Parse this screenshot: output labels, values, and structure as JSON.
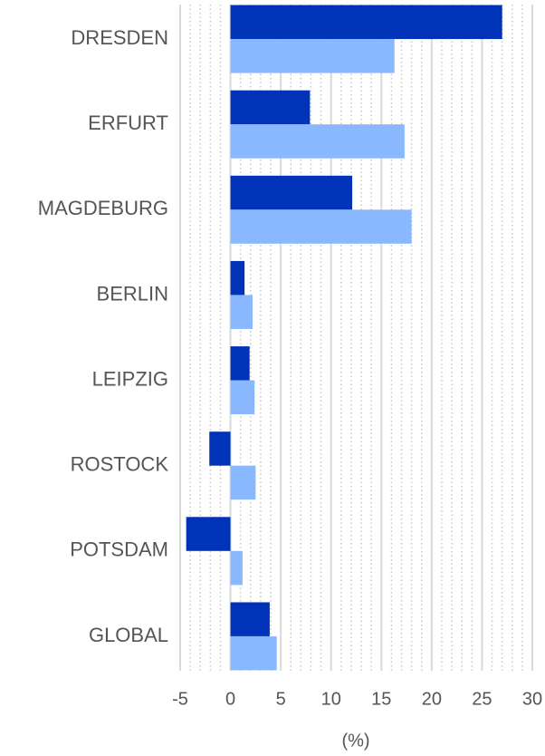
{
  "chart_data": {
    "type": "hbar",
    "categories": [
      "DRESDEN",
      "ERFURT",
      "MAGDEBURG",
      "BERLIN",
      "LEIPZIG",
      "ROSTOCK",
      "POTSDAM",
      "GLOBAL"
    ],
    "series": [
      {
        "color": "#0033b8",
        "values": [
          27.0,
          7.9,
          12.1,
          1.4,
          1.9,
          -2.1,
          -4.4,
          3.9
        ]
      },
      {
        "color": "#8ab8ff",
        "values": [
          16.3,
          17.3,
          18.0,
          2.2,
          2.4,
          2.5,
          1.2,
          4.6
        ]
      }
    ],
    "xlabel": "(%)",
    "xlim": [
      -5,
      30
    ],
    "xticks": [
      -5,
      0,
      5,
      10,
      15,
      20,
      25,
      30
    ],
    "grid": true,
    "minor_grid": true
  }
}
